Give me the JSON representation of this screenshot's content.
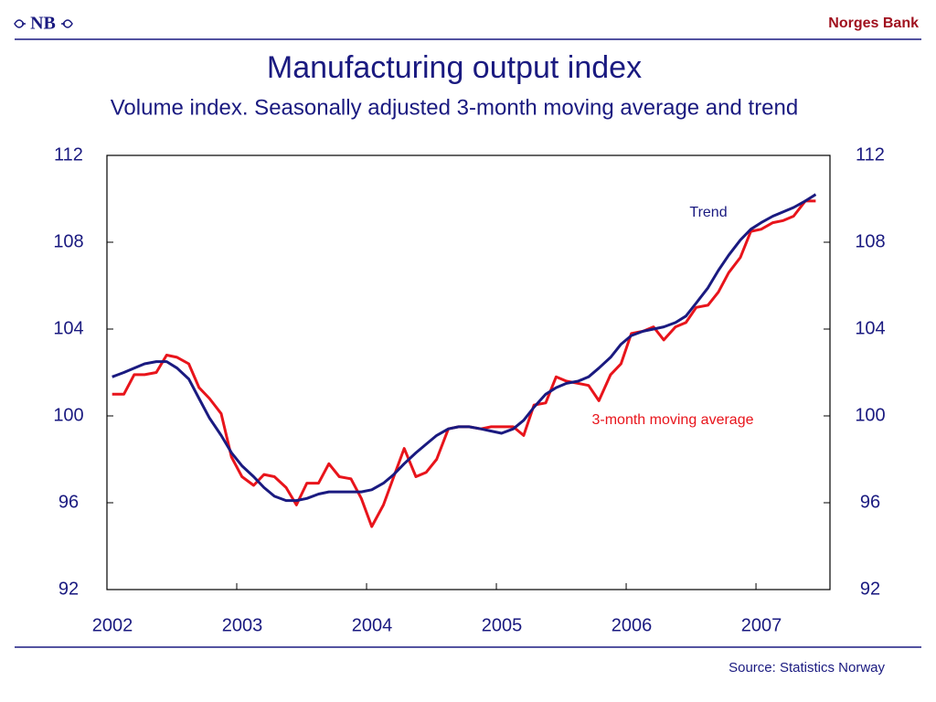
{
  "header": {
    "logo": "NB",
    "brand": "Norges Bank"
  },
  "chart_data": {
    "type": "line",
    "title": "Manufacturing output index",
    "subtitle": "Volume index. Seasonally adjusted 3-month moving average and trend",
    "x": [
      2002.04,
      2002.13,
      2002.21,
      2002.29,
      2002.38,
      2002.46,
      2002.54,
      2002.63,
      2002.71,
      2002.79,
      2002.88,
      2002.96,
      2003.04,
      2003.13,
      2003.21,
      2003.29,
      2003.38,
      2003.46,
      2003.54,
      2003.63,
      2003.71,
      2003.79,
      2003.88,
      2003.96,
      2004.04,
      2004.13,
      2004.21,
      2004.29,
      2004.38,
      2004.46,
      2004.54,
      2004.63,
      2004.71,
      2004.79,
      2004.88,
      2004.96,
      2005.04,
      2005.13,
      2005.21,
      2005.29,
      2005.38,
      2005.46,
      2005.54,
      2005.63,
      2005.71,
      2005.79,
      2005.88,
      2005.96,
      2006.04,
      2006.13,
      2006.21,
      2006.29,
      2006.38,
      2006.46,
      2006.54,
      2006.63,
      2006.71,
      2006.79,
      2006.88,
      2006.96,
      2007.04,
      2007.13,
      2007.21,
      2007.29,
      2007.38,
      2007.46
    ],
    "series": [
      {
        "name": "3-month moving average",
        "color": "#e8141b",
        "values": [
          101.0,
          101.0,
          101.9,
          101.9,
          102.0,
          102.8,
          102.7,
          102.4,
          101.3,
          100.8,
          100.1,
          98.1,
          97.2,
          96.8,
          97.3,
          97.2,
          96.7,
          95.9,
          96.9,
          96.9,
          97.8,
          97.2,
          97.1,
          96.2,
          94.9,
          95.9,
          97.2,
          98.5,
          97.2,
          97.4,
          98.0,
          99.4,
          99.5,
          99.5,
          99.4,
          99.5,
          99.5,
          99.5,
          99.1,
          100.5,
          100.6,
          101.8,
          101.6,
          101.5,
          101.4,
          100.7,
          101.9,
          102.4,
          103.8,
          103.9,
          104.1,
          103.5,
          104.1,
          104.3,
          105.0,
          105.1,
          105.7,
          106.6,
          107.3,
          108.5,
          108.6,
          108.9,
          109.0,
          109.2,
          109.9,
          109.9
        ]
      },
      {
        "name": "Trend",
        "color": "#1a1a80",
        "values": [
          101.8,
          102.0,
          102.2,
          102.4,
          102.5,
          102.5,
          102.2,
          101.7,
          100.8,
          99.9,
          99.1,
          98.3,
          97.7,
          97.2,
          96.7,
          96.3,
          96.1,
          96.1,
          96.2,
          96.4,
          96.5,
          96.5,
          96.5,
          96.5,
          96.6,
          96.9,
          97.3,
          97.8,
          98.3,
          98.7,
          99.1,
          99.4,
          99.5,
          99.5,
          99.4,
          99.3,
          99.2,
          99.4,
          99.8,
          100.4,
          101.0,
          101.3,
          101.5,
          101.6,
          101.8,
          102.2,
          102.7,
          103.3,
          103.7,
          103.9,
          104.0,
          104.1,
          104.3,
          104.6,
          105.2,
          105.9,
          106.7,
          107.4,
          108.1,
          108.6,
          108.9,
          109.2,
          109.4,
          109.6,
          109.9,
          110.2
        ]
      }
    ],
    "xlim": [
      2002,
      2007.57
    ],
    "xticks": [
      2002,
      2003,
      2004,
      2005,
      2006,
      2007
    ],
    "ylim": [
      92,
      112
    ],
    "yticks": [
      92,
      96,
      100,
      104,
      108,
      112
    ]
  },
  "footer": {
    "source": "Source: Statistics Norway"
  }
}
